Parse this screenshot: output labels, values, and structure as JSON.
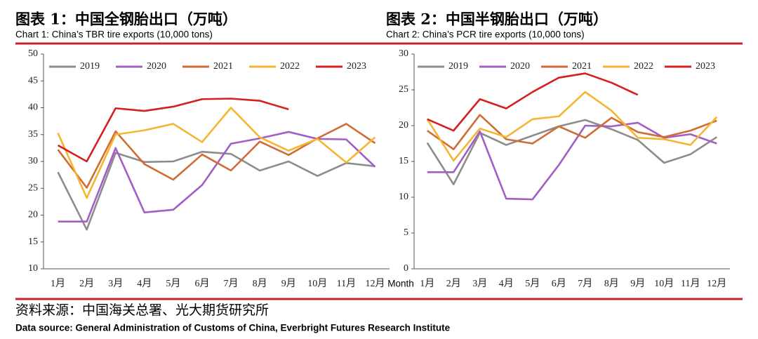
{
  "chart_data": [
    {
      "type": "line",
      "title": "图表 1：中国全钢胎出口（万吨）",
      "subtitle": "Chart 1: China’s TBR tire exports (10,000 tons)",
      "categories": [
        "1月",
        "2月",
        "3月",
        "4月",
        "5月",
        "6月",
        "7月",
        "8月",
        "9月",
        "10月",
        "11月",
        "12月"
      ],
      "ylim": [
        10,
        50
      ],
      "yticks": [
        10,
        15,
        20,
        25,
        30,
        35,
        40,
        45,
        50
      ],
      "grid": false,
      "series": [
        {
          "name": "2019",
          "color": "#8c8c8c",
          "values": [
            28.0,
            17.3,
            31.6,
            29.9,
            30.0,
            31.8,
            31.4,
            28.3,
            30.0,
            27.3,
            29.7,
            29.1
          ]
        },
        {
          "name": "2020",
          "color": "#a25ec4",
          "values": [
            18.8,
            18.8,
            32.5,
            20.5,
            21.0,
            25.6,
            33.3,
            34.3,
            35.5,
            34.2,
            34.1,
            29.0
          ]
        },
        {
          "name": "2021",
          "color": "#cf6d34",
          "values": [
            32.2,
            25.1,
            35.6,
            29.5,
            26.6,
            31.3,
            28.3,
            33.7,
            31.2,
            34.3,
            37.0,
            33.4
          ]
        },
        {
          "name": "2022",
          "color": "#f5b531",
          "values": [
            35.3,
            23.2,
            35.0,
            35.8,
            37.0,
            33.6,
            40.0,
            34.5,
            32.0,
            34.2,
            29.8,
            34.5
          ]
        },
        {
          "name": "2023",
          "color": "#d5201f",
          "values": [
            33.0,
            30.0,
            39.9,
            39.4,
            40.2,
            41.6,
            41.7,
            41.3,
            39.7,
            null,
            null,
            null
          ]
        }
      ]
    },
    {
      "type": "line",
      "title": "图表 2：中国半钢胎出口（万吨）",
      "subtitle": "Chart 2: China’s PCR tire exports (10,000 tons)",
      "xlabel": "Month",
      "categories": [
        "1月",
        "2月",
        "3月",
        "4月",
        "5月",
        "6月",
        "7月",
        "8月",
        "9月",
        "10月",
        "11月",
        "12月"
      ],
      "ylim": [
        0,
        30
      ],
      "yticks": [
        0,
        5,
        10,
        15,
        20,
        25,
        30
      ],
      "grid": false,
      "series": [
        {
          "name": "2019",
          "color": "#8c8c8c",
          "values": [
            17.6,
            11.8,
            19.0,
            17.3,
            18.6,
            19.9,
            20.8,
            19.5,
            18.0,
            14.8,
            16.0,
            18.4
          ]
        },
        {
          "name": "2020",
          "color": "#a25ec4",
          "values": [
            13.5,
            13.5,
            19.2,
            9.8,
            9.7,
            14.5,
            20.0,
            19.9,
            20.4,
            18.3,
            18.8,
            17.5
          ]
        },
        {
          "name": "2021",
          "color": "#cf6d34",
          "values": [
            19.3,
            16.7,
            21.5,
            18.1,
            17.5,
            19.9,
            18.3,
            21.1,
            19.1,
            18.4,
            19.3,
            20.7
          ]
        },
        {
          "name": "2022",
          "color": "#f5b531",
          "values": [
            20.9,
            15.1,
            19.6,
            18.4,
            20.9,
            21.3,
            24.7,
            22.1,
            18.3,
            18.1,
            17.3,
            21.2
          ]
        },
        {
          "name": "2023",
          "color": "#d5201f",
          "values": [
            20.9,
            19.3,
            23.7,
            22.4,
            24.7,
            26.7,
            27.3,
            26.0,
            24.3,
            null,
            null,
            null
          ]
        }
      ]
    }
  ],
  "source": {
    "title": "资料来源：中国海关总署、光大期货研究所",
    "subtitle": "Data source: General Administration of Customs of China, Everbright Futures Research Institute"
  }
}
